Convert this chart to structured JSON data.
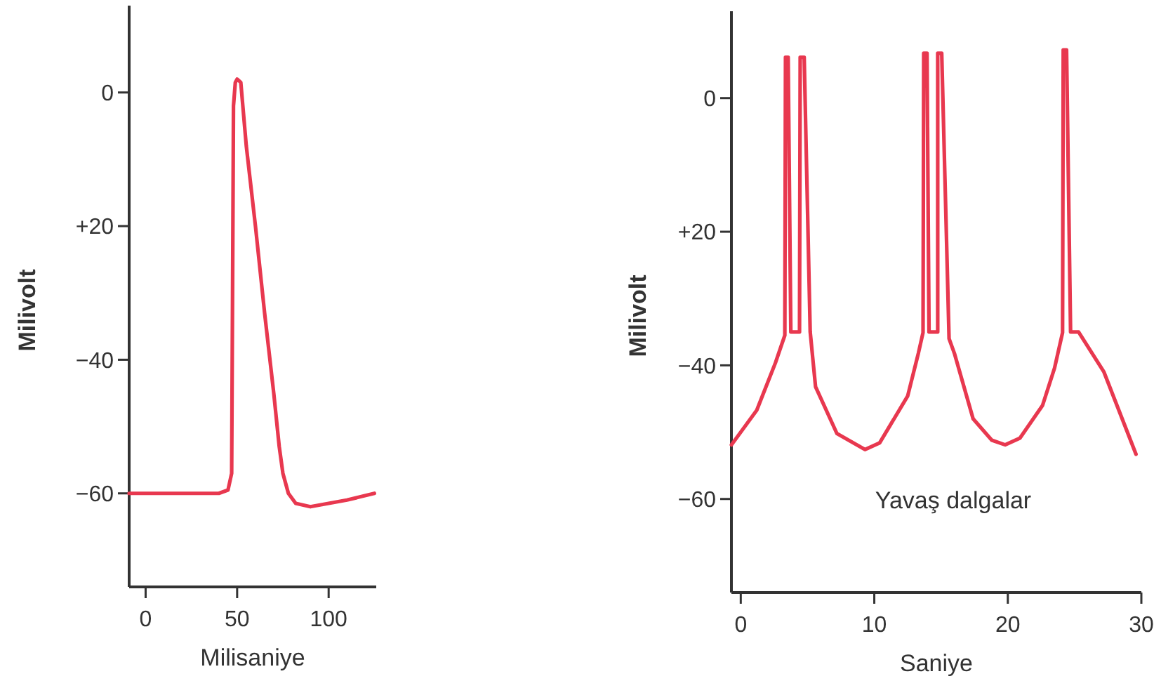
{
  "chart_data": [
    {
      "type": "line",
      "xlabel": "Milisaniye",
      "ylabel": "Milivolt",
      "xlim": [
        -9,
        126
      ],
      "ylim": [
        -74,
        13
      ],
      "xticks": [
        0,
        50,
        100
      ],
      "yticks": [
        0,
        {
          "value": -20,
          "label": "+20"
        },
        -40,
        -60
      ],
      "grid": false,
      "marker": "none",
      "line_style": "solid",
      "series": [
        {
          "color": "#e8384f",
          "x": [
            -9,
            0,
            20,
            40,
            45,
            47,
            47.5,
            48,
            49,
            50,
            52,
            55,
            60,
            65,
            70,
            73,
            75,
            78,
            82,
            90,
            100,
            110,
            125
          ],
          "values": [
            -60,
            -60,
            -60,
            -60,
            -59.5,
            -57,
            -30,
            -2,
            1.5,
            2,
            1.5,
            -8,
            -20,
            -33,
            -45,
            -53,
            -57,
            -60,
            -61.5,
            -62,
            -61.5,
            -61,
            -60
          ]
        }
      ]
    },
    {
      "type": "line",
      "xlabel": "Saniye",
      "ylabel": "Milivolt",
      "xlim": [
        -0.7,
        30
      ],
      "ylim": [
        -74,
        13
      ],
      "xticks": [
        0,
        10,
        20,
        30
      ],
      "yticks": [
        0,
        {
          "value": -20,
          "label": "+20"
        },
        -40,
        -60
      ],
      "grid": false,
      "marker": "none",
      "line_style": "solid",
      "annotations": [
        "Yavaş dalgalar"
      ],
      "series": [
        {
          "color": "#e8384f",
          "x": [
            -0.7,
            1.2,
            2.6,
            3.3,
            3.35,
            3.55,
            3.75,
            4.4,
            4.45,
            4.75,
            5.2,
            5.6,
            7.2,
            9.3,
            10.4,
            12.5,
            13.3,
            13.65,
            13.7,
            13.95,
            14.1,
            14.75,
            14.75,
            15.05,
            15.6,
            16.0,
            17.4,
            18.8,
            19.8,
            20.9,
            22.6,
            23.5,
            24.1,
            24.15,
            24.4,
            24.7,
            25.3,
            27.2,
            29.6
          ],
          "values": [
            -51.9,
            -46.7,
            -39.6,
            -35.5,
            6.1,
            6.1,
            -35,
            -35,
            6.1,
            6.1,
            -35,
            -43.2,
            -50.2,
            -52.6,
            -51.6,
            -44.6,
            -38.2,
            -35.1,
            6.7,
            6.7,
            -35,
            -35,
            6.7,
            6.7,
            -36,
            -38.2,
            -48,
            -51.2,
            -51.9,
            -50.9,
            -46,
            -40.4,
            -35.1,
            7.2,
            7.2,
            -35,
            -35,
            -41,
            -53.3
          ]
        }
      ]
    }
  ]
}
